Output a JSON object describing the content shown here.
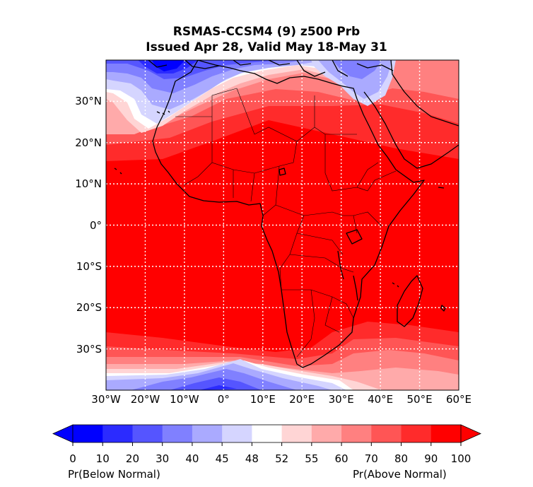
{
  "title_line1": "RSMAS-CCSM4 (9) z500 Prb",
  "title_line2": "Issued Apr 28, Valid May 18-May 31",
  "map": {
    "lon_range": [
      -30,
      60
    ],
    "lat_range": [
      -40,
      40
    ],
    "lat_ticks": [
      {
        "value": 30,
        "label": "30°N"
      },
      {
        "value": 20,
        "label": "20°N"
      },
      {
        "value": 10,
        "label": "10°N"
      },
      {
        "value": 0,
        "label": "0°"
      },
      {
        "value": -10,
        "label": "10°S"
      },
      {
        "value": -20,
        "label": "20°S"
      },
      {
        "value": -30,
        "label": "30°S"
      }
    ],
    "lon_ticks": [
      {
        "value": -30,
        "label": "30°W"
      },
      {
        "value": -20,
        "label": "20°W"
      },
      {
        "value": -10,
        "label": "10°W"
      },
      {
        "value": 0,
        "label": "0°"
      },
      {
        "value": 10,
        "label": "10°E"
      },
      {
        "value": 20,
        "label": "20°E"
      },
      {
        "value": 30,
        "label": "30°E"
      },
      {
        "value": 40,
        "label": "40°E"
      },
      {
        "value": 50,
        "label": "50°E"
      },
      {
        "value": 60,
        "label": "60°E"
      }
    ],
    "gridlines": true
  },
  "colorbar": {
    "boundaries": [
      "0",
      "10",
      "20",
      "30",
      "40",
      "45",
      "48",
      "52",
      "55",
      "60",
      "70",
      "80",
      "90",
      "100"
    ],
    "colors": [
      "#0000ff",
      "#2b2bff",
      "#5555ff",
      "#8080ff",
      "#aaaaff",
      "#d5d5ff",
      "#ffffff",
      "#ffd5d5",
      "#ffaaaa",
      "#ff8080",
      "#ff5555",
      "#ff2b2b",
      "#ff0000"
    ],
    "left_caption": "Pr(Below Normal)",
    "right_caption": "Pr(Above Normal)"
  }
}
